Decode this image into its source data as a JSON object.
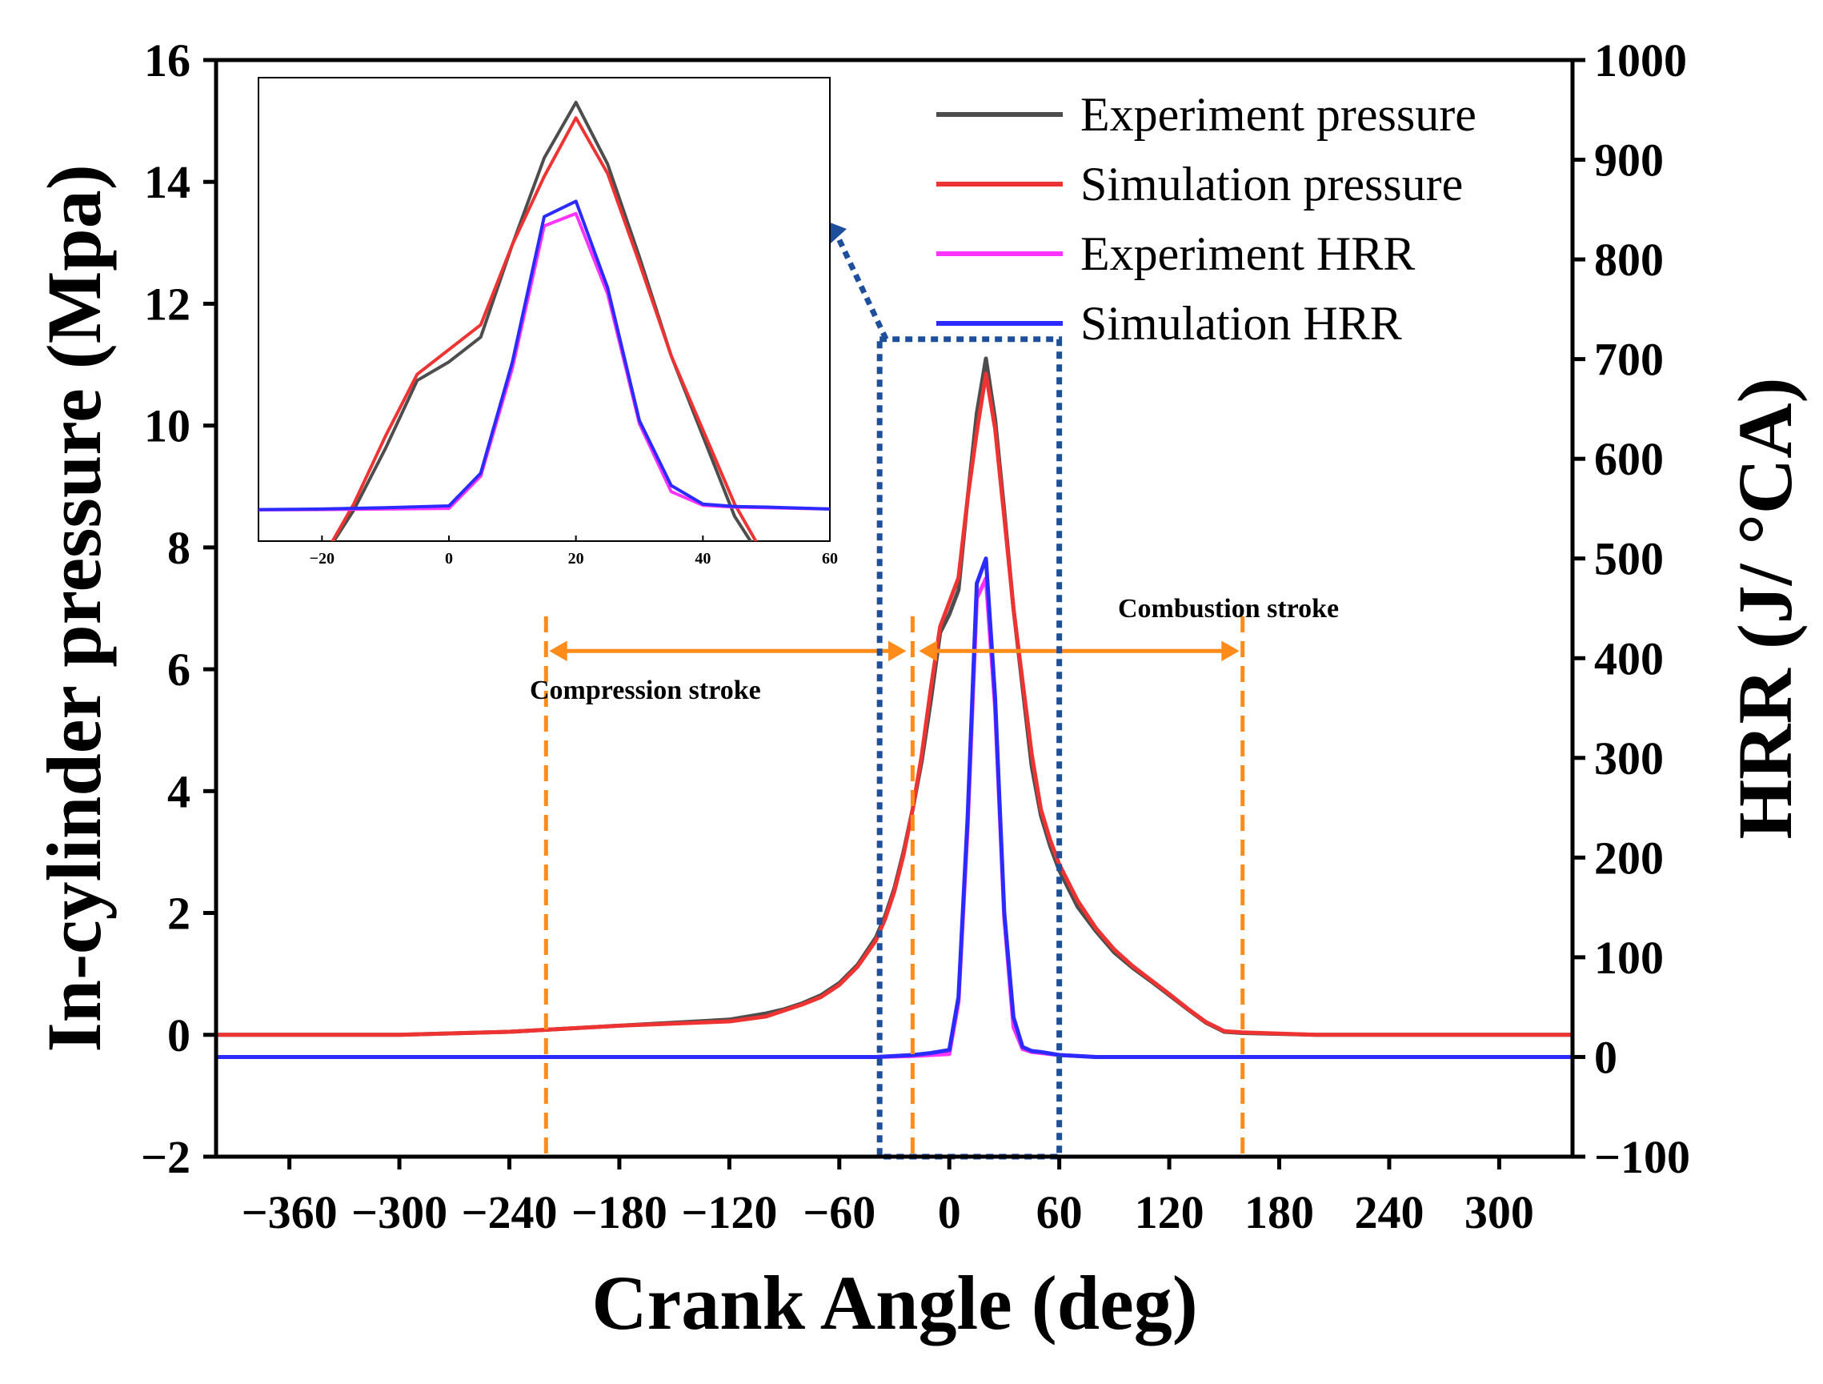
{
  "chart_data": {
    "type": "line",
    "xlabel": "Crank Angle (deg)",
    "ylabel_left": "In-cylinder pressure (Mpa)",
    "ylabel_right": "HRR (J/ °CA)",
    "xlim": [
      -400,
      340
    ],
    "ylim_left": [
      -2,
      16
    ],
    "ylim_right": [
      -100,
      1000
    ],
    "x_ticks": [
      -360,
      -300,
      -240,
      -180,
      -120,
      -60,
      0,
      60,
      120,
      180,
      240,
      300
    ],
    "x_tick_labels": [
      "−360",
      "−300",
      "−240",
      "−180",
      "−120",
      "−60",
      "0",
      "60",
      "120",
      "180",
      "240",
      "300"
    ],
    "y_left_ticks": [
      -2,
      0,
      2,
      4,
      6,
      8,
      10,
      12,
      14,
      16
    ],
    "y_left_tick_labels": [
      "−2",
      "0",
      "2",
      "4",
      "6",
      "8",
      "10",
      "12",
      "14",
      "16"
    ],
    "y_right_ticks": [
      -100,
      0,
      100,
      200,
      300,
      400,
      500,
      600,
      700,
      800,
      900,
      1000
    ],
    "y_right_tick_labels": [
      "−100",
      "0",
      "100",
      "200",
      "300",
      "400",
      "500",
      "600",
      "700",
      "800",
      "900",
      "1000"
    ],
    "series": [
      {
        "name": "Experiment pressure",
        "color": "#4d4d4d",
        "axis": "left",
        "x": [
          -400,
          -300,
          -240,
          -180,
          -120,
          -100,
          -90,
          -80,
          -70,
          -60,
          -50,
          -40,
          -35,
          -30,
          -25,
          -20,
          -15,
          -10,
          -5,
          0,
          5,
          10,
          15,
          20,
          25,
          30,
          35,
          40,
          45,
          50,
          55,
          60,
          70,
          80,
          90,
          100,
          110,
          120,
          130,
          140,
          150,
          160,
          200,
          340
        ],
        "y": [
          0,
          0,
          0.05,
          0.15,
          0.25,
          0.35,
          0.42,
          0.52,
          0.65,
          0.85,
          1.15,
          1.6,
          1.95,
          2.4,
          3.0,
          3.7,
          4.5,
          5.5,
          6.6,
          6.9,
          7.3,
          8.8,
          10.2,
          11.1,
          10.1,
          8.6,
          7.0,
          5.7,
          4.4,
          3.6,
          3.1,
          2.7,
          2.1,
          1.7,
          1.35,
          1.1,
          0.88,
          0.65,
          0.42,
          0.2,
          0.05,
          0.03,
          0,
          0
        ]
      },
      {
        "name": "Simulation pressure",
        "color": "#ee3333",
        "axis": "left",
        "x": [
          -400,
          -300,
          -240,
          -180,
          -120,
          -100,
          -90,
          -80,
          -70,
          -60,
          -50,
          -40,
          -35,
          -30,
          -25,
          -20,
          -15,
          -10,
          -5,
          0,
          5,
          10,
          15,
          20,
          25,
          30,
          35,
          40,
          45,
          50,
          55,
          60,
          70,
          80,
          90,
          100,
          110,
          120,
          130,
          140,
          150,
          160,
          200,
          340
        ],
        "y": [
          0,
          0,
          0.05,
          0.15,
          0.22,
          0.3,
          0.4,
          0.5,
          0.62,
          0.82,
          1.12,
          1.55,
          1.9,
          2.35,
          2.95,
          3.7,
          4.6,
          5.7,
          6.7,
          7.1,
          7.5,
          8.8,
          9.9,
          10.85,
          9.95,
          8.5,
          7.0,
          5.8,
          4.6,
          3.7,
          3.2,
          2.8,
          2.2,
          1.75,
          1.4,
          1.13,
          0.9,
          0.67,
          0.43,
          0.21,
          0.06,
          0.04,
          0,
          0
        ]
      },
      {
        "name": "Experiment HRR",
        "color": "#ff33ff",
        "axis": "right",
        "x": [
          -400,
          -100,
          -40,
          -20,
          -10,
          0,
          5,
          10,
          15,
          20,
          25,
          30,
          35,
          40,
          45,
          50,
          60,
          80,
          100,
          340
        ],
        "y": [
          0,
          0,
          0,
          1,
          2,
          3,
          55,
          230,
          460,
          480,
          350,
          140,
          30,
          8,
          5,
          4,
          2,
          0,
          0,
          0
        ]
      },
      {
        "name": "Simulation HRR",
        "color": "#2b2bff",
        "axis": "right",
        "x": [
          -400,
          -100,
          -40,
          -20,
          -10,
          0,
          5,
          10,
          15,
          20,
          25,
          30,
          35,
          40,
          45,
          50,
          60,
          80,
          100,
          340
        ],
        "y": [
          0,
          0,
          0,
          2,
          4,
          7,
          60,
          240,
          475,
          500,
          360,
          145,
          40,
          10,
          6,
          5,
          2,
          0,
          0,
          0
        ]
      }
    ],
    "legend": {
      "placement": "top-right",
      "entries": [
        "Experiment pressure",
        "Simulation pressure",
        "Experiment HRR",
        "Simulation HRR"
      ]
    },
    "annotations": {
      "compression_label": "Compression stroke",
      "combustion_label": "Combustion stroke",
      "compression_range": [
        -220,
        -20
      ],
      "combustion_range": [
        -20,
        160
      ],
      "annotation_pressure": 6.3,
      "dashed_lines_x": [
        -220,
        -20,
        160
      ],
      "zoom_box_x": [
        -38,
        60
      ],
      "zoom_box_y_hrr": [
        -100,
        720
      ],
      "marker_color": "#ff8c1a",
      "zoom_color": "#1e4f9c"
    },
    "inset": {
      "xlim": [
        -30,
        60
      ],
      "ylim_left": [
        4,
        11.5
      ],
      "ylim_right": [
        -50,
        700
      ],
      "x_ticks": [
        -20,
        0,
        20,
        40,
        60
      ],
      "x_tick_labels": [
        "−20",
        "0",
        "20",
        "40",
        "60"
      ]
    }
  }
}
